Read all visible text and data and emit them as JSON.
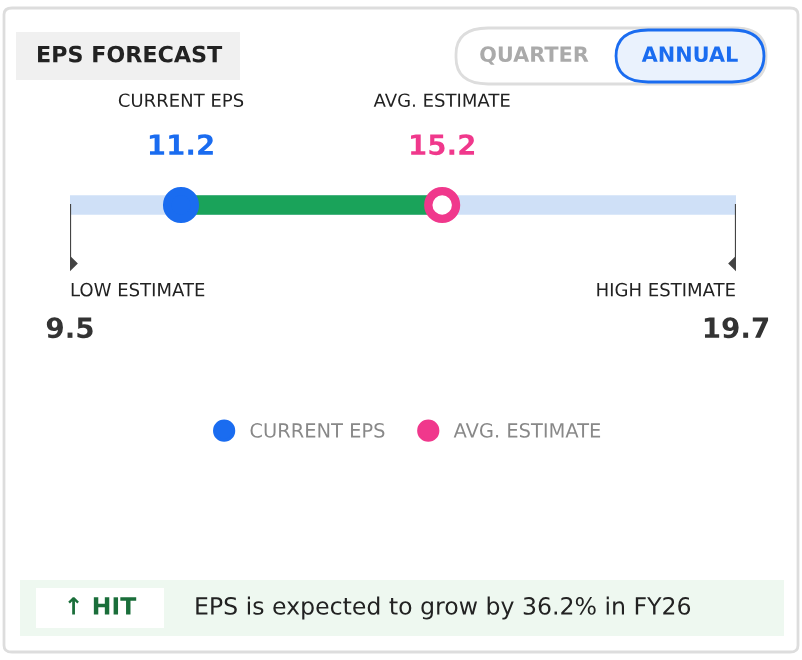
{
  "chart_data": {
    "type": "other",
    "title": "EPS FORECAST",
    "series": [
      {
        "type": "scatter",
        "marker": "diamond",
        "name": "LOW ESTIMATE",
        "color": "#444444",
        "values": [
          9.5
        ],
        "value_labels": [
          "9.5"
        ]
      },
      {
        "type": "scatter",
        "marker": "circle",
        "name": "CURRENT EPS",
        "color": "#1a6cf0",
        "values": [
          11.2
        ],
        "value_labels": [
          "11.2"
        ]
      },
      {
        "type": "scatter",
        "marker": "circle",
        "name": "AVG. ESTIMATE",
        "color": "#f0388c",
        "values": [
          15.2
        ],
        "value_labels": [
          "15.2"
        ]
      },
      {
        "type": "scatter",
        "marker": "diamond",
        "name": "HIGH ESTIMATE",
        "color": "#444444",
        "values": [
          19.7
        ],
        "value_labels": [
          "19.7"
        ]
      }
    ],
    "legend": "bottom",
    "annotations": [
      "QUARTER",
      "ANNUAL",
      "↑ HIT",
      "EPS is expected to grow by 36.2% in FY26"
    ]
  }
}
